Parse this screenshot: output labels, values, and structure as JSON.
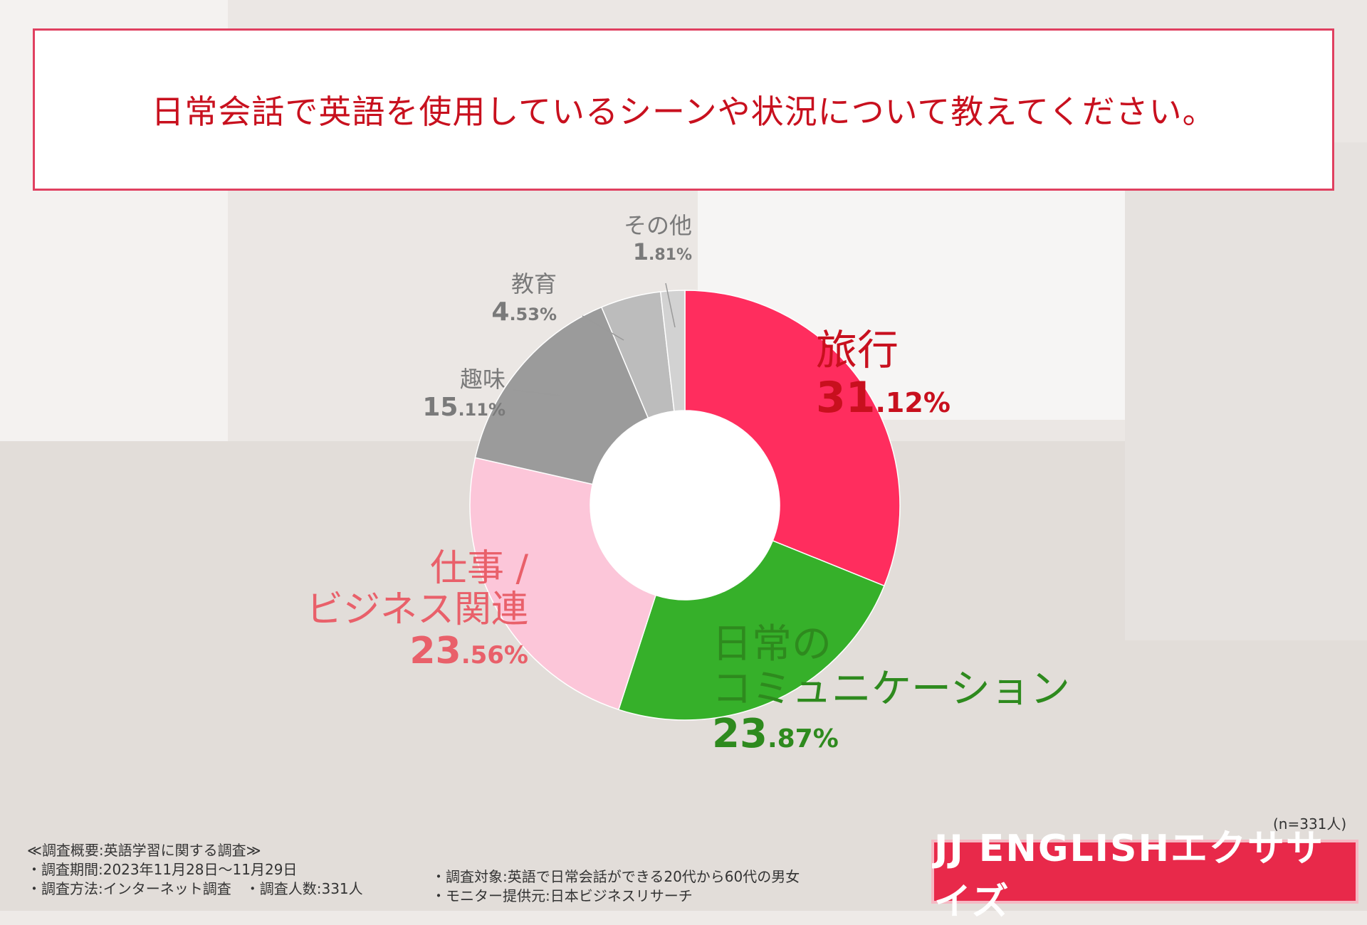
{
  "title": "日常会話で英語を使用しているシーンや状況について教えてください。",
  "chart_data": {
    "type": "pie",
    "donut": true,
    "categories": [
      "旅行",
      "日常のコミュニケーション",
      "仕事 / ビジネス関連",
      "趣味",
      "教育",
      "その他"
    ],
    "values": [
      31.12,
      23.87,
      23.56,
      15.11,
      4.53,
      1.81
    ],
    "unit": "%",
    "colors": [
      "#ff2d5e",
      "#36b02a",
      "#fcc6d9",
      "#9b9b9b",
      "#bcbcbc",
      "#d2d2d2"
    ],
    "labels": [
      {
        "name": "旅行",
        "int": "31",
        "dec": ".12%",
        "color": "#c8101e"
      },
      {
        "name_lines": [
          "日常の",
          "コミュニケーション"
        ],
        "int": "23",
        "dec": ".87%",
        "color": "#2e8a1e"
      },
      {
        "name_lines": [
          "仕事 /",
          "ビジネス関連"
        ],
        "int": "23",
        "dec": ".56%",
        "color": "#e9606a"
      },
      {
        "name": "趣味",
        "int": "15",
        "dec": ".11%",
        "color": "#7a7a7a"
      },
      {
        "name": "教育",
        "int": "4",
        "dec": ".53%",
        "color": "#7a7a7a"
      },
      {
        "name": "その他",
        "int": "1",
        "dec": ".81%",
        "color": "#7a7a7a"
      }
    ]
  },
  "sample_size": "(n=331人)",
  "notes": {
    "heading": "≪調査概要:英語学習に関する調査≫",
    "period": "・調査期間:2023年11月28日～11月29日",
    "method": "・調査方法:インターネット調査　・調査人数:331人",
    "target": "・調査対象:英語で日常会話ができる20代から60代の男女",
    "provider": "・モニター提供元:日本ビジネスリサーチ"
  },
  "logo": "JJ ENGLISHエクササイズ"
}
